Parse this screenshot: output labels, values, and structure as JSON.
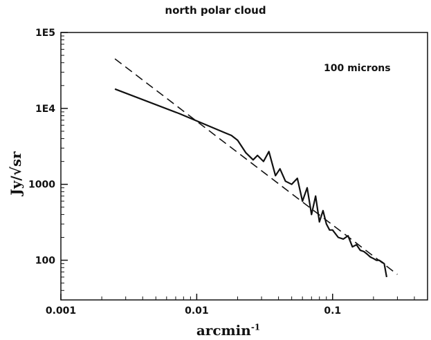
{
  "chart_data": {
    "type": "line",
    "title": "north polar cloud",
    "xlabel": "arcmin",
    "xlabel_exponent": "-1",
    "ylabel": "Jy/√sr",
    "x_scale": "log",
    "y_scale": "log",
    "xlim": [
      0.001,
      0.5
    ],
    "ylim": [
      30,
      100000
    ],
    "x_ticks": [
      0.001,
      0.01,
      0.1
    ],
    "x_tick_labels": [
      "0.001",
      "0.01",
      "0.1"
    ],
    "y_ticks": [
      100,
      1000,
      10000,
      100000
    ],
    "y_tick_labels": [
      "100",
      "1000",
      "1E4",
      "1E5"
    ],
    "grid": false,
    "annotation": "100 microns",
    "series": [
      {
        "style": "solid",
        "x": [
          0.0025,
          0.0075,
          0.016,
          0.018,
          0.02,
          0.023,
          0.026,
          0.028,
          0.031,
          0.034,
          0.038,
          0.041,
          0.045,
          0.05,
          0.055,
          0.06,
          0.065,
          0.07,
          0.075,
          0.08,
          0.085,
          0.09,
          0.095,
          0.1,
          0.11,
          0.12,
          0.13,
          0.14,
          0.15,
          0.16,
          0.17,
          0.18,
          0.19,
          0.2,
          0.21,
          0.22,
          0.23,
          0.24,
          0.25
        ],
        "y": [
          18000,
          8500,
          4800,
          4400,
          3800,
          2600,
          2100,
          2400,
          2000,
          2700,
          1300,
          1600,
          1100,
          1000,
          1200,
          600,
          900,
          400,
          700,
          320,
          450,
          300,
          250,
          250,
          200,
          190,
          210,
          150,
          160,
          135,
          130,
          120,
          110,
          105,
          100,
          100,
          95,
          90,
          60
        ]
      },
      {
        "style": "dashed",
        "x": [
          0.0025,
          0.3
        ],
        "y": [
          45000,
          65
        ]
      }
    ]
  }
}
